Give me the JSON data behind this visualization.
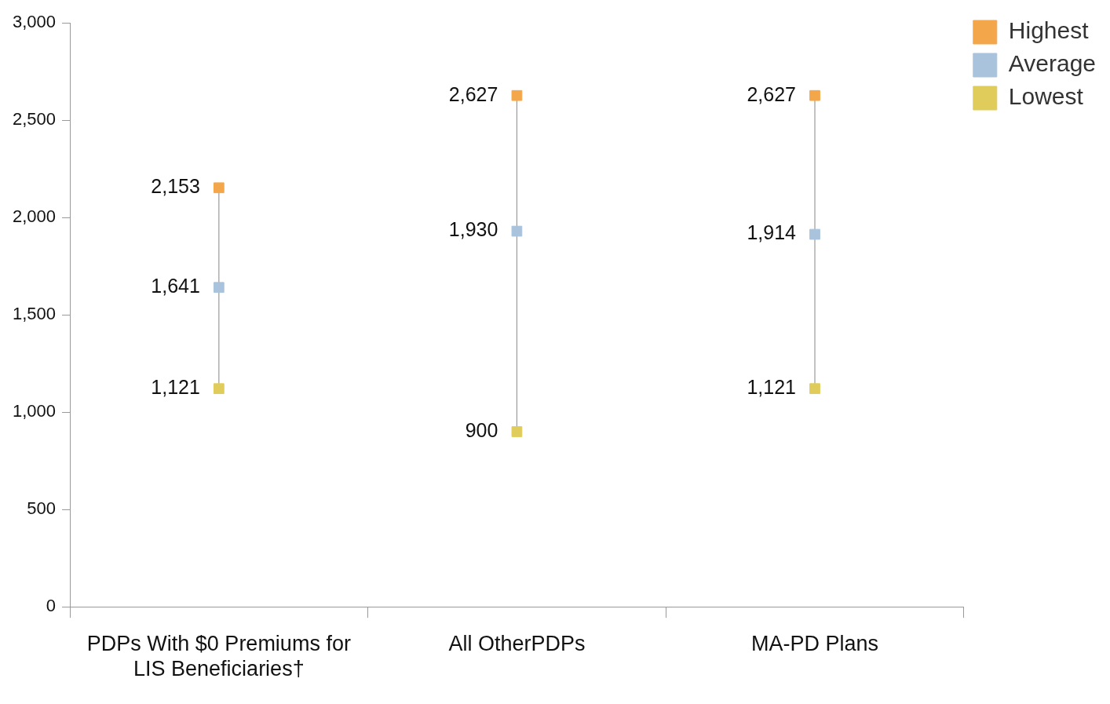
{
  "chart_data": {
    "type": "scatter",
    "categories": [
      "PDPs With $0 Premiums for LIS Beneficiaries†",
      "All OtherPDPs",
      "MA-PD Plans"
    ],
    "series": [
      {
        "name": "Highest",
        "color": "#f4a74a",
        "values": [
          2153,
          2627,
          2627
        ],
        "value_labels": [
          "2,153",
          "2,627",
          "2,627"
        ]
      },
      {
        "name": "Average",
        "color": "#a9c3dc",
        "values": [
          1641,
          1930,
          1914
        ],
        "value_labels": [
          "1,641",
          "1,930",
          "1,914"
        ]
      },
      {
        "name": "Lowest",
        "color": "#e0cc5a",
        "values": [
          1121,
          900,
          1121
        ],
        "value_labels": [
          "1,121",
          "900",
          "1,121"
        ]
      }
    ],
    "ylim": [
      0,
      3000
    ],
    "yticks": [
      {
        "value": 0,
        "label": "0"
      },
      {
        "value": 500,
        "label": "500"
      },
      {
        "value": 1000,
        "label": "1,000"
      },
      {
        "value": 1500,
        "label": "1,500"
      },
      {
        "value": 2000,
        "label": "2,000"
      },
      {
        "value": 2500,
        "label": "2,500"
      },
      {
        "value": 3000,
        "label": "3,000"
      }
    ],
    "marker": "square",
    "grid": false,
    "legend": "top right"
  }
}
